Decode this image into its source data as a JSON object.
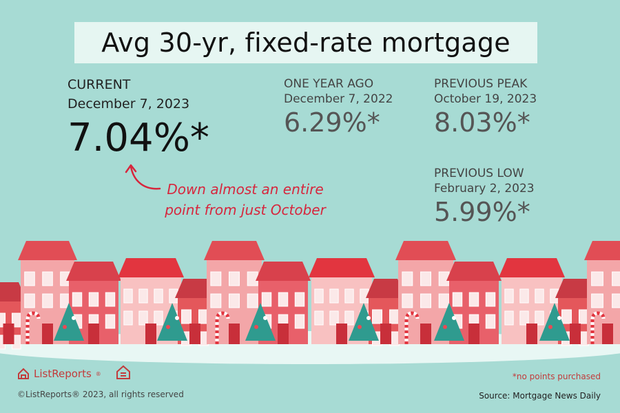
{
  "title": "Avg 30-yr, fixed-rate mortgage",
  "current": {
    "label": "CURRENT",
    "date": "December 7, 2023",
    "value": "7.04%*"
  },
  "year_ago": {
    "label": "ONE YEAR AGO",
    "date": "December 7, 2022",
    "value": "6.29%*"
  },
  "prev_peak": {
    "label": "PREVIOUS PEAK",
    "date": "October 19, 2023",
    "value": "8.03%*"
  },
  "prev_low": {
    "label": "PREVIOUS LOW",
    "date": "February 2, 2023",
    "value": "5.99%*"
  },
  "note": {
    "line1": "Down almost an entire",
    "line2": "point from just October"
  },
  "footer": {
    "brand": "ListReports",
    "brand_mark": "®",
    "copyright": "©ListReports® 2023, all rights reserved",
    "disclaimer": "*no points purchased",
    "source": "Source: Mortgage News Daily"
  },
  "colors": {
    "background": "#a7dbd4",
    "title_bg": "#e6f6f2",
    "accent": "#d7263d"
  },
  "icons": [
    "house-logo-icon",
    "equal-housing-icon",
    "curved-arrow-icon"
  ]
}
